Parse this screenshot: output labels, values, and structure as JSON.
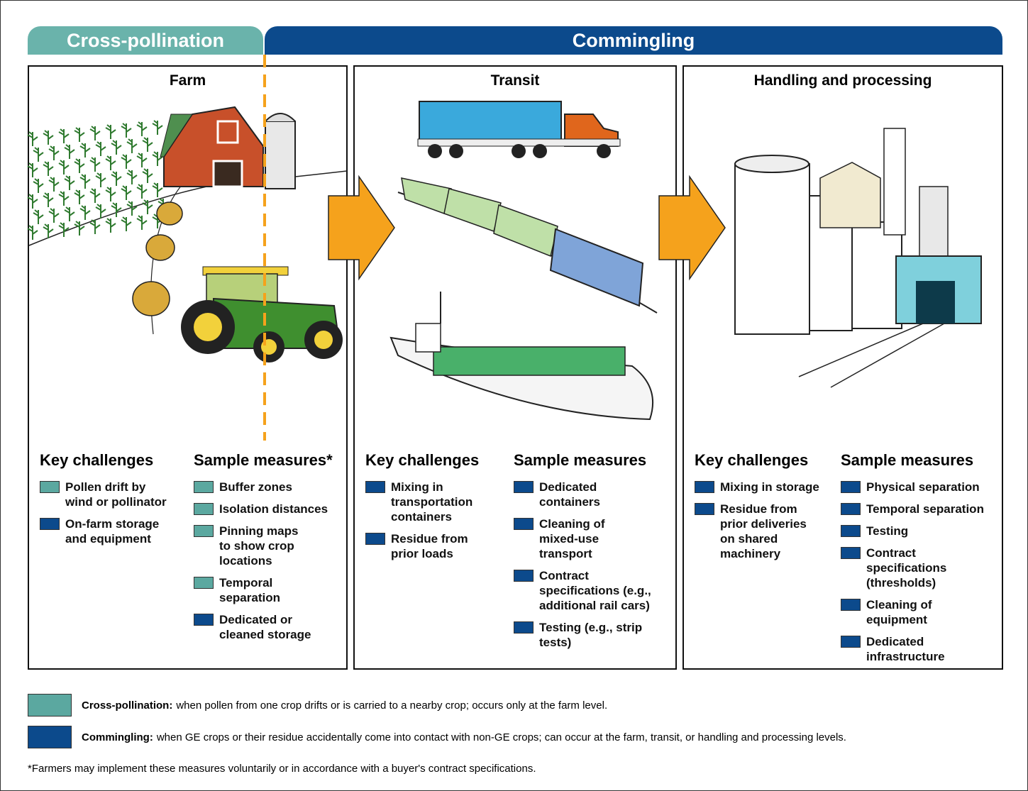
{
  "banners": [
    {
      "label": "Cross-pollination",
      "color": "#6ab3ab"
    },
    {
      "label": "Commingling",
      "color": "#0c4a8c"
    }
  ],
  "panels": [
    {
      "title": "Farm",
      "challenges_heading": "Key challenges",
      "measures_heading": "Sample measures*",
      "challenges": [
        {
          "text": "Pollen drift by\nwind or pollinator",
          "color": "#5ba8a0"
        },
        {
          "text": "On-farm storage\nand equipment",
          "color": "#0c4a8c"
        }
      ],
      "measures": [
        {
          "text": "Buffer zones",
          "color": "#5ba8a0"
        },
        {
          "text": "Isolation distances",
          "color": "#5ba8a0"
        },
        {
          "text": "Pinning maps\nto show crop\nlocations",
          "color": "#5ba8a0"
        },
        {
          "text": "Temporal\nseparation",
          "color": "#5ba8a0"
        },
        {
          "text": "Dedicated or\ncleaned storage",
          "color": "#0c4a8c"
        }
      ]
    },
    {
      "title": "Transit",
      "challenges_heading": "Key challenges",
      "measures_heading": "Sample measures",
      "challenges": [
        {
          "text": "Mixing in\ntransportation\ncontainers",
          "color": "#0c4a8c"
        },
        {
          "text": "Residue from\nprior loads",
          "color": "#0c4a8c"
        }
      ],
      "measures": [
        {
          "text": "Dedicated\ncontainers",
          "color": "#0c4a8c"
        },
        {
          "text": "Cleaning of\nmixed-use\ntransport",
          "color": "#0c4a8c"
        },
        {
          "text": "Contract\nspecifications (e.g.,\nadditional rail cars)",
          "color": "#0c4a8c"
        },
        {
          "text": "Testing (e.g., strip\ntests)",
          "color": "#0c4a8c"
        }
      ]
    },
    {
      "title": "Handling and processing",
      "challenges_heading": "Key challenges",
      "measures_heading": "Sample measures",
      "challenges": [
        {
          "text": "Mixing in storage",
          "color": "#0c4a8c"
        },
        {
          "text": "Residue from\nprior deliveries\non shared\nmachinery",
          "color": "#0c4a8c"
        }
      ],
      "measures": [
        {
          "text": "Physical separation",
          "color": "#0c4a8c"
        },
        {
          "text": "Temporal separation",
          "color": "#0c4a8c"
        },
        {
          "text": "Testing",
          "color": "#0c4a8c"
        },
        {
          "text": "Contract\nspecifications\n(thresholds)",
          "color": "#0c4a8c"
        },
        {
          "text": "Cleaning of\nequipment",
          "color": "#0c4a8c"
        },
        {
          "text": "Dedicated\ninfrastructure",
          "color": "#0c4a8c"
        }
      ]
    }
  ],
  "legend": [
    {
      "term": "Cross-pollination:",
      "description": "when pollen from one crop drifts or is carried to a nearby crop; occurs only at the farm level.",
      "color": "#5ba8a0"
    },
    {
      "term": "Commingling:",
      "description": "when GE crops or their residue accidentally come into contact with non-GE crops; can occur at the farm, transit, or handling and processing levels.",
      "color": "#0c4a8c"
    }
  ],
  "footnote": "*Farmers may implement these measures voluntarily or in accordance with a buyer's contract specifications."
}
